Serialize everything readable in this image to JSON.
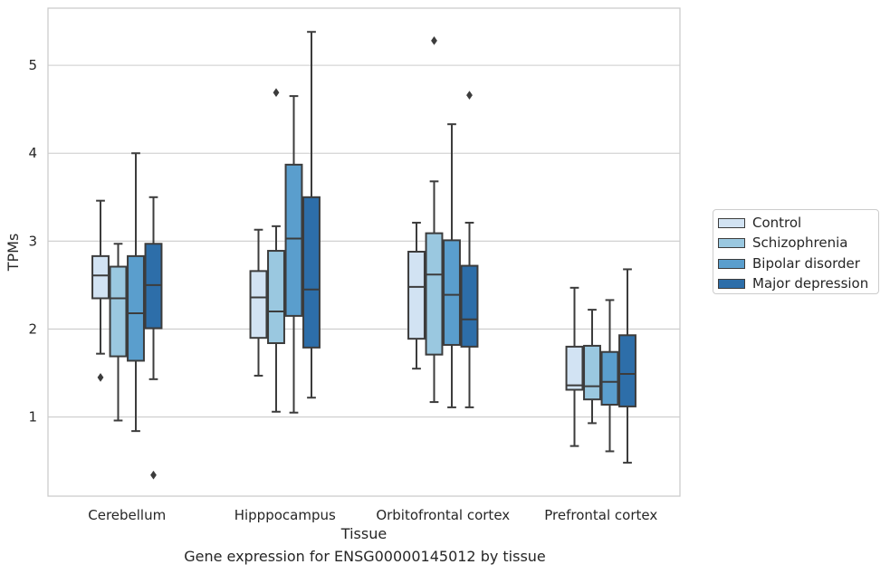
{
  "caption": "Gene expression for ENSG00000145012 by tissue",
  "chart_data": {
    "type": "box",
    "xlabel": "Tissue",
    "ylabel": "TPMs",
    "ylim": [
      0.1,
      5.65
    ],
    "yticks": [
      1,
      2,
      3,
      4,
      5
    ],
    "grid": "horizontal",
    "legend_position": "right",
    "categories": [
      "Cerebellum",
      "Hipppocampus",
      "Orbitofrontal cortex",
      "Prefrontal cortex"
    ],
    "series": [
      {
        "name": "Control",
        "color": "#d2e3f3",
        "boxes": [
          {
            "whislo": 1.72,
            "q1": 2.35,
            "med": 2.61,
            "q3": 2.83,
            "whishi": 3.46,
            "fliers": [
              1.45
            ]
          },
          {
            "whislo": 1.47,
            "q1": 1.9,
            "med": 2.36,
            "q3": 2.66,
            "whishi": 3.13,
            "fliers": []
          },
          {
            "whislo": 1.55,
            "q1": 1.89,
            "med": 2.48,
            "q3": 2.88,
            "whishi": 3.21,
            "fliers": []
          },
          {
            "whislo": 0.67,
            "q1": 1.31,
            "med": 1.36,
            "q3": 1.8,
            "whishi": 2.47,
            "fliers": []
          }
        ]
      },
      {
        "name": "Schizophrenia",
        "color": "#9ac8e0",
        "boxes": [
          {
            "whislo": 0.96,
            "q1": 1.69,
            "med": 2.35,
            "q3": 2.71,
            "whishi": 2.97,
            "fliers": []
          },
          {
            "whislo": 1.06,
            "q1": 1.84,
            "med": 2.2,
            "q3": 2.89,
            "whishi": 3.17,
            "fliers": [
              4.69
            ]
          },
          {
            "whislo": 1.17,
            "q1": 1.71,
            "med": 2.62,
            "q3": 3.09,
            "whishi": 3.68,
            "fliers": [
              5.28
            ]
          },
          {
            "whislo": 0.93,
            "q1": 1.2,
            "med": 1.35,
            "q3": 1.81,
            "whishi": 2.22,
            "fliers": []
          }
        ]
      },
      {
        "name": "Bipolar disorder",
        "color": "#5a9ecd",
        "boxes": [
          {
            "whislo": 0.84,
            "q1": 1.64,
            "med": 2.18,
            "q3": 2.83,
            "whishi": 4.0,
            "fliers": []
          },
          {
            "whislo": 1.05,
            "q1": 2.15,
            "med": 3.03,
            "q3": 3.87,
            "whishi": 4.65,
            "fliers": []
          },
          {
            "whislo": 1.11,
            "q1": 1.82,
            "med": 2.39,
            "q3": 3.01,
            "whishi": 4.33,
            "fliers": []
          },
          {
            "whislo": 0.61,
            "q1": 1.14,
            "med": 1.4,
            "q3": 1.74,
            "whishi": 2.33,
            "fliers": []
          }
        ]
      },
      {
        "name": "Major depression",
        "color": "#2d6ea9",
        "boxes": [
          {
            "whislo": 1.43,
            "q1": 2.01,
            "med": 2.5,
            "q3": 2.97,
            "whishi": 3.5,
            "fliers": [
              0.34
            ]
          },
          {
            "whislo": 1.22,
            "q1": 1.79,
            "med": 2.45,
            "q3": 3.5,
            "whishi": 5.38,
            "fliers": []
          },
          {
            "whislo": 1.11,
            "q1": 1.8,
            "med": 2.11,
            "q3": 2.72,
            "whishi": 3.21,
            "fliers": [
              4.66
            ]
          },
          {
            "whislo": 0.48,
            "q1": 1.12,
            "med": 1.49,
            "q3": 1.93,
            "whishi": 2.68,
            "fliers": []
          }
        ]
      }
    ]
  }
}
